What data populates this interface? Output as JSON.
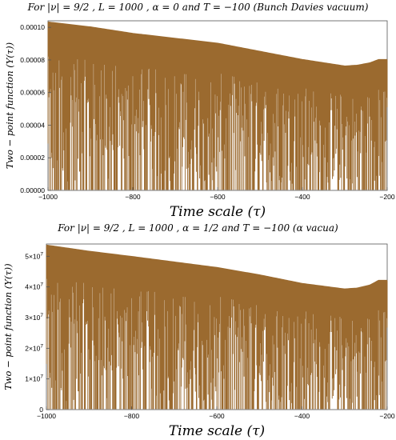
{
  "chart_data": [
    {
      "type": "line",
      "title": "For |ν| = 9/2 , L = 1000 , α = 0 and T = −100 (Bunch Davies vacuum)",
      "xlabel": "Time scale  (τ)",
      "ylabel": "Two − point function (Y(τ))",
      "xlim": [
        -1000,
        -200
      ],
      "ylim": [
        0,
        0.000104
      ],
      "x_ticks": [
        -1000,
        -800,
        -600,
        -400,
        -200
      ],
      "x_tick_labels": [
        "−1000",
        "−800",
        "−600",
        "−400",
        "−200"
      ],
      "y_ticks": [
        0,
        2e-05,
        4e-05,
        6e-05,
        8e-05,
        0.0001
      ],
      "y_tick_labels": [
        "0.00000",
        "0.00002",
        "0.00004",
        "0.00006",
        "0.00008",
        "0.00010"
      ],
      "series": [
        {
          "color": "#9b6a2f",
          "envelope_x": [
            -1000,
            -900,
            -800,
            -700,
            -600,
            -500,
            -400,
            -300,
            -270,
            -240,
            -220,
            -200
          ],
          "envelope_upper": [
            0.000103,
            0.0001,
            9.6e-05,
            9.3e-05,
            9e-05,
            8.5e-05,
            8e-05,
            7.6e-05,
            7.65e-05,
            7.8e-05,
            8e-05,
            8e-05
          ],
          "lower": 0
        }
      ]
    },
    {
      "type": "line",
      "title": "For |ν| = 9/2 , L = 1000 , α = 1/2 and T = −100 (α vacua)",
      "xlabel": "Time scale  (τ)",
      "ylabel": "Two − point function (Y(τ))",
      "xlim": [
        -1000,
        -200
      ],
      "ylim": [
        0,
        54000000
      ],
      "x_ticks": [
        -1000,
        -800,
        -600,
        -400,
        -200
      ],
      "x_tick_labels": [
        "−1000",
        "−800",
        "−600",
        "−400",
        "−200"
      ],
      "y_ticks": [
        0,
        10000000,
        20000000,
        30000000,
        40000000,
        50000000
      ],
      "y_tick_labels": [
        {
          "base": "0",
          "exp": ""
        },
        {
          "base": "1×10",
          "exp": "7"
        },
        {
          "base": "2×10",
          "exp": "7"
        },
        {
          "base": "3×10",
          "exp": "7"
        },
        {
          "base": "4×10",
          "exp": "7"
        },
        {
          "base": "5×10",
          "exp": "7"
        }
      ],
      "series": [
        {
          "color": "#9b6a2f",
          "envelope_x": [
            -1000,
            -900,
            -800,
            -700,
            -600,
            -500,
            -400,
            -300,
            -270,
            -240,
            -220,
            -200
          ],
          "envelope_upper": [
            53500000,
            51500000,
            49800000,
            48000000,
            46200000,
            43800000,
            41000000,
            39200000,
            39500000,
            40500000,
            42000000,
            42000000
          ],
          "lower": 0
        }
      ]
    }
  ]
}
